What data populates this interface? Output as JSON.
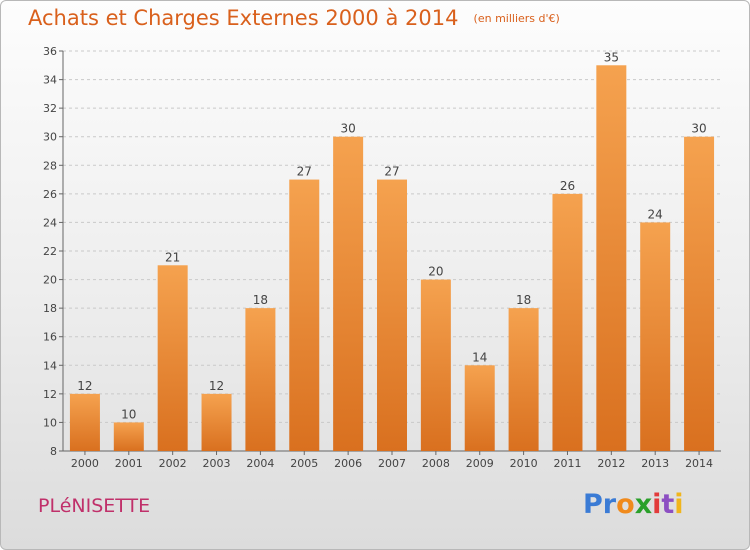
{
  "title": "Achats et Charges Externes 2000 à 2014",
  "subtitle": "(en milliers d'€)",
  "commune": "PLéNISETTE",
  "brand": {
    "letters": [
      "P",
      "r",
      "o",
      "x",
      "i",
      "t",
      "i"
    ],
    "colors": [
      "#3a7bd5",
      "#3a7bd5",
      "#f08a1c",
      "#2aa02a",
      "#e23b3b",
      "#8c4fc2",
      "#f0b51c"
    ]
  },
  "colors": {
    "bar_top": "#f5a24f",
    "bar_bottom": "#d9701f",
    "title": "#d9601c",
    "commune": "#c0306a"
  },
  "chart_data": {
    "type": "bar",
    "categories": [
      "2000",
      "2001",
      "2002",
      "2003",
      "2004",
      "2005",
      "2006",
      "2007",
      "2008",
      "2009",
      "2010",
      "2011",
      "2012",
      "2013",
      "2014"
    ],
    "values": [
      12,
      10,
      21,
      12,
      18,
      27,
      30,
      27,
      20,
      14,
      18,
      26,
      35,
      24,
      30
    ],
    "value_labels": [
      "12",
      "10",
      "21",
      "12",
      "18",
      "27",
      "30",
      "27",
      "20",
      "14",
      "18",
      "26",
      "35",
      "24",
      "30"
    ],
    "ylim": [
      8,
      36
    ],
    "yticks": [
      "8",
      "10",
      "12",
      "14",
      "16",
      "18",
      "20",
      "22",
      "24",
      "26",
      "28",
      "30",
      "32",
      "34",
      "36"
    ],
    "grid": true,
    "xlabel": "",
    "ylabel": ""
  }
}
